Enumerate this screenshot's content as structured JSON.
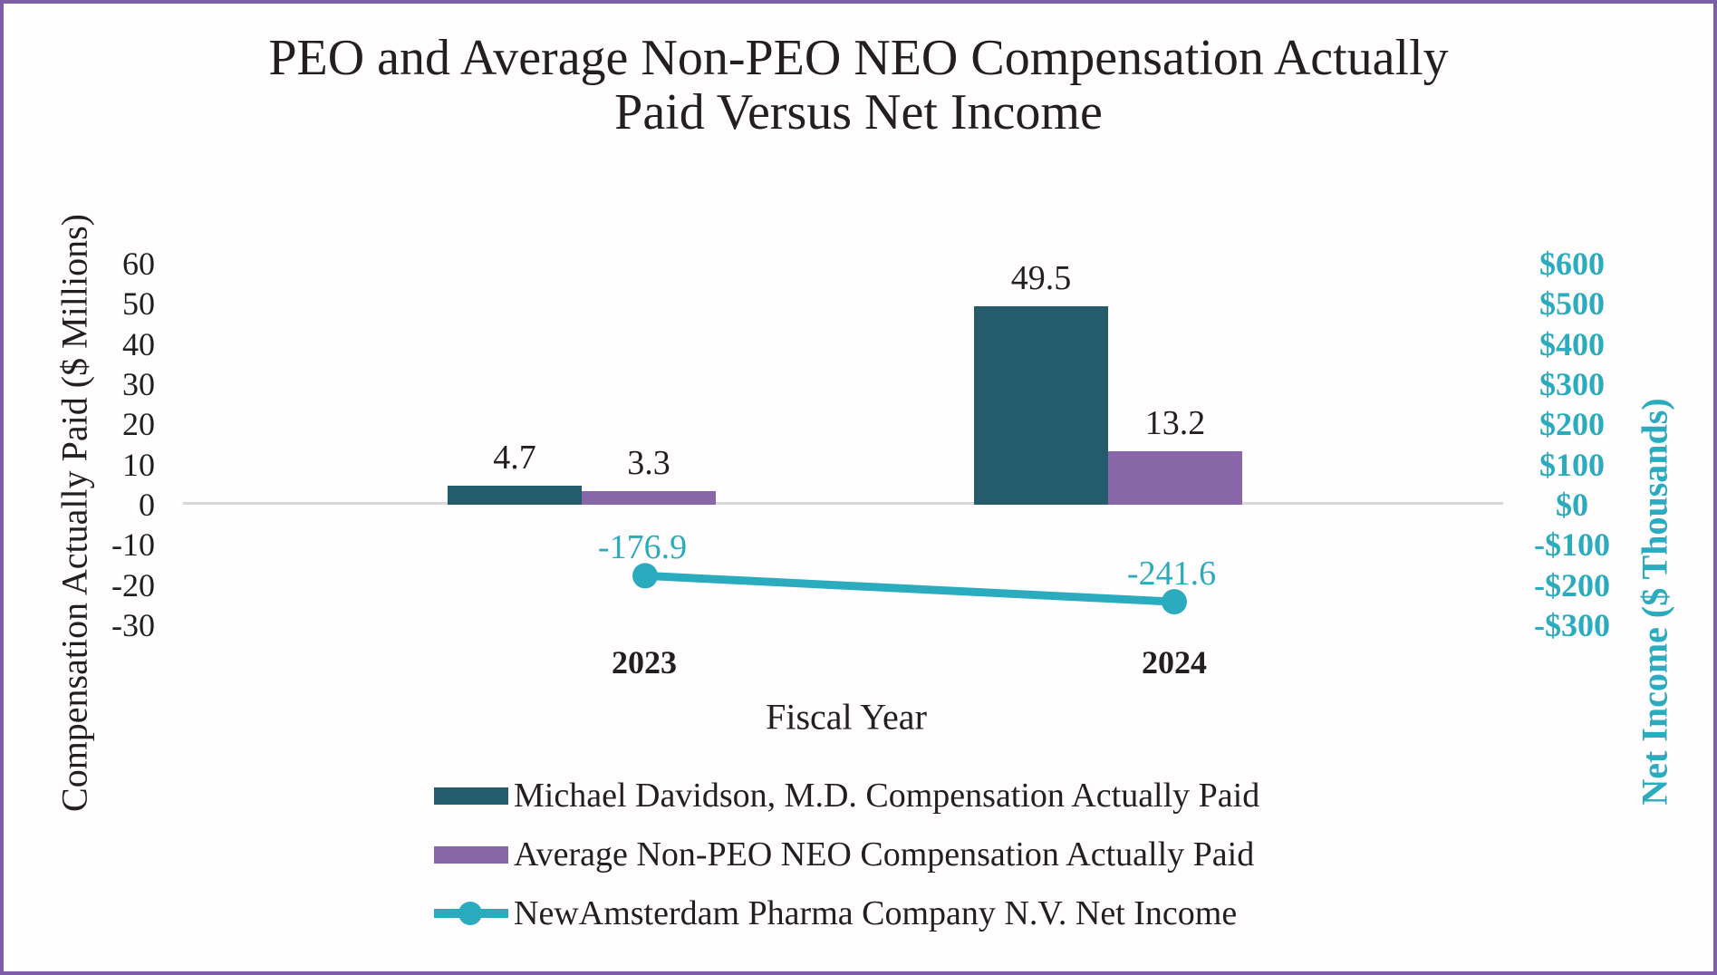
{
  "title": {
    "line1": "PEO and Average Non-PEO NEO Compensation Actually",
    "line2": "Paid Versus Net Income"
  },
  "colors": {
    "peo_bar": "#245C6C",
    "neo_bar": "#8767A8",
    "net_line": "#2BACBE",
    "gridline": "#D9D9D9",
    "frame_border": "#7C5DA6",
    "text": "#231f20"
  },
  "chart_data": {
    "type": "combo-bar-line",
    "categories": [
      "2023",
      "2024"
    ],
    "x_axis_title": "Fiscal Year",
    "gridlines": "zero-line-only",
    "legend_position": "bottom-left",
    "left_axis": {
      "title": "Compensation Actually Paid ($ Millions)",
      "ticks": [
        60,
        50,
        40,
        30,
        20,
        10,
        0,
        -10,
        -20,
        -30
      ],
      "range": [
        -30,
        60
      ]
    },
    "right_axis": {
      "title": "Net Income ($ Thousands)",
      "tick_labels": [
        "$600",
        "$500",
        "$400",
        "$300",
        "$200",
        "$100",
        "$0",
        "-$100",
        "-$200",
        "-$300"
      ],
      "tick_values": [
        600,
        500,
        400,
        300,
        200,
        100,
        0,
        -100,
        -200,
        -300
      ],
      "range": [
        -300,
        600
      ]
    },
    "series": [
      {
        "name": "Michael Davidson, M.D. Compensation Actually Paid",
        "type": "bar",
        "axis": "left",
        "color_key": "peo_bar",
        "values": [
          4.7,
          49.5
        ],
        "data_labels": [
          "4.7",
          "49.5"
        ]
      },
      {
        "name": "Average Non-PEO NEO Compensation Actually Paid",
        "type": "bar",
        "axis": "left",
        "color_key": "neo_bar",
        "values": [
          3.3,
          13.2
        ],
        "data_labels": [
          "3.3",
          "13.2"
        ]
      },
      {
        "name": "NewAmsterdam Pharma Company N.V. Net Income",
        "type": "line",
        "axis": "right",
        "color_key": "net_line",
        "values": [
          -176.9,
          -241.6
        ],
        "data_labels": [
          "-176.9",
          "-241.6"
        ]
      }
    ]
  }
}
